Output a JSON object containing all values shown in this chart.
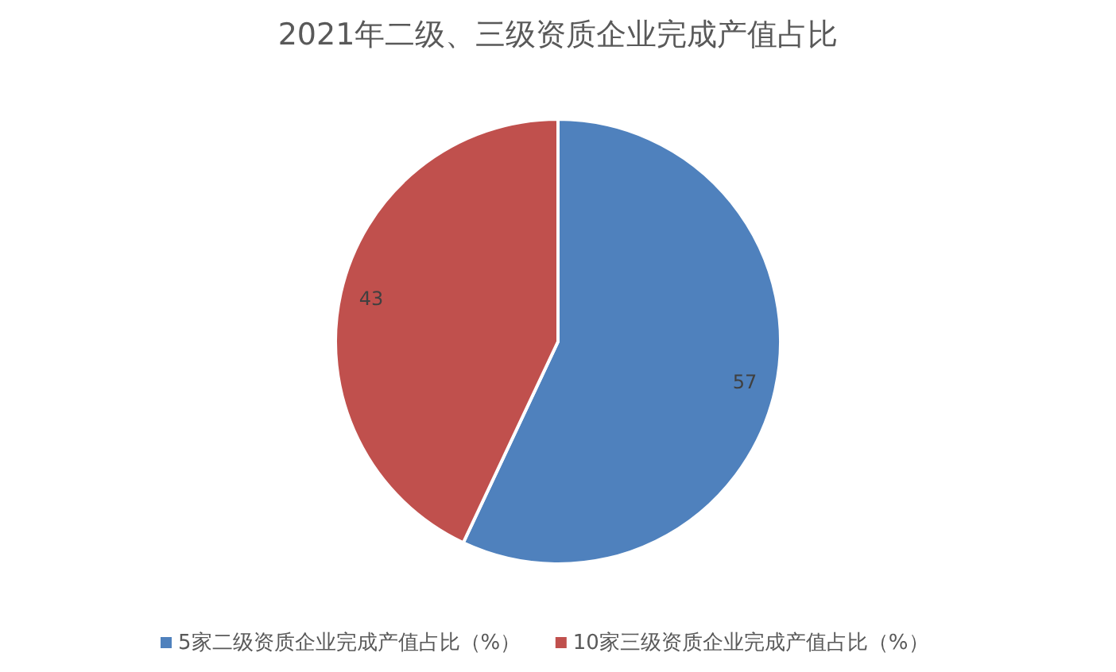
{
  "chart_data": {
    "type": "pie",
    "title": "2021年二级、三级资质企业完成产值占比",
    "categories": [
      "5家二级资质企业完成产值占比（%）",
      "10家三级资质企业完成产值占比（%）"
    ],
    "values": [
      57,
      43
    ],
    "colors": [
      "#4f81bd",
      "#c0504d"
    ],
    "data_labels": true,
    "legend": "bottom"
  }
}
